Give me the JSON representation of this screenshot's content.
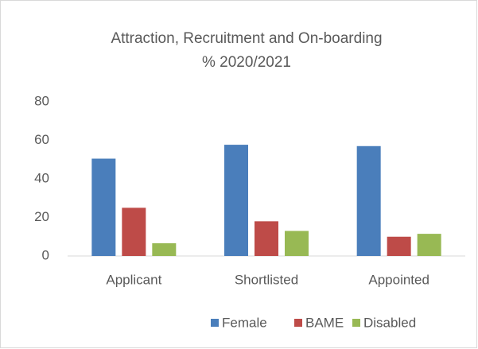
{
  "chart_data": {
    "type": "bar",
    "title": [
      "Attraction, Recruitment and On-boarding",
      "% 2020/2021"
    ],
    "categories": [
      "Applicant",
      "Shortlisted",
      "Appointed"
    ],
    "series": [
      {
        "name": "Female",
        "color": "#4a7ebb",
        "values": [
          50.5,
          57.7,
          57
        ]
      },
      {
        "name": "BAME",
        "color": "#be4b48",
        "values": [
          25,
          18,
          10
        ]
      },
      {
        "name": "Disabled",
        "color": "#98b954",
        "values": [
          6.6,
          13,
          11.5
        ]
      }
    ],
    "ylim": [
      0,
      80
    ],
    "yticks": [
      0,
      20,
      40,
      60,
      80
    ],
    "grid": false,
    "legend": "bottom"
  }
}
